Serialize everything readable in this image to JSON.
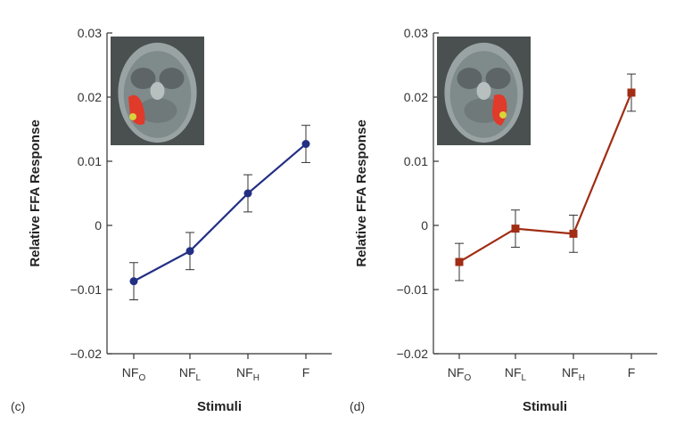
{
  "chart_data": [
    {
      "type": "line",
      "panel_label": "(c)",
      "xlabel": "Stimuli",
      "ylabel": "Relative FFA Response",
      "categories": [
        {
          "base": "NF",
          "sub": "O"
        },
        {
          "base": "NF",
          "sub": "L"
        },
        {
          "base": "NF",
          "sub": "H"
        },
        {
          "base": "F",
          "sub": ""
        }
      ],
      "ylim": [
        -0.02,
        0.03
      ],
      "yticks": [
        -0.02,
        -0.01,
        0,
        0.01,
        0.02,
        0.03
      ],
      "ytick_labels": [
        "−0.02",
        "−0.01",
        "0",
        "0.01",
        "0.02",
        "0.03"
      ],
      "series": [
        {
          "values": [
            -0.0087,
            -0.004,
            0.005,
            0.0127
          ],
          "errors": [
            0.0029,
            0.0029,
            0.0029,
            0.0029
          ],
          "color": "#232f84",
          "marker": "circle"
        }
      ],
      "inset": "brain-scan-image",
      "grid": false,
      "legend": "none"
    },
    {
      "type": "line",
      "panel_label": "(d)",
      "xlabel": "Stimuli",
      "ylabel": "Relative FFA Response",
      "categories": [
        {
          "base": "NF",
          "sub": "O"
        },
        {
          "base": "NF",
          "sub": "L"
        },
        {
          "base": "NF",
          "sub": "H"
        },
        {
          "base": "F",
          "sub": ""
        }
      ],
      "ylim": [
        -0.02,
        0.03
      ],
      "yticks": [
        -0.02,
        -0.01,
        0,
        0.01,
        0.02,
        0.03
      ],
      "ytick_labels": [
        "−0.02",
        "−0.01",
        "0",
        "0.01",
        "0.02",
        "0.03"
      ],
      "series": [
        {
          "values": [
            -0.0057,
            -0.0005,
            -0.0013,
            0.0207
          ],
          "errors": [
            0.0029,
            0.0029,
            0.0029,
            0.0029
          ],
          "color": "#a02d14",
          "marker": "square"
        }
      ],
      "inset": "brain-scan-image",
      "grid": false,
      "legend": "none"
    }
  ]
}
